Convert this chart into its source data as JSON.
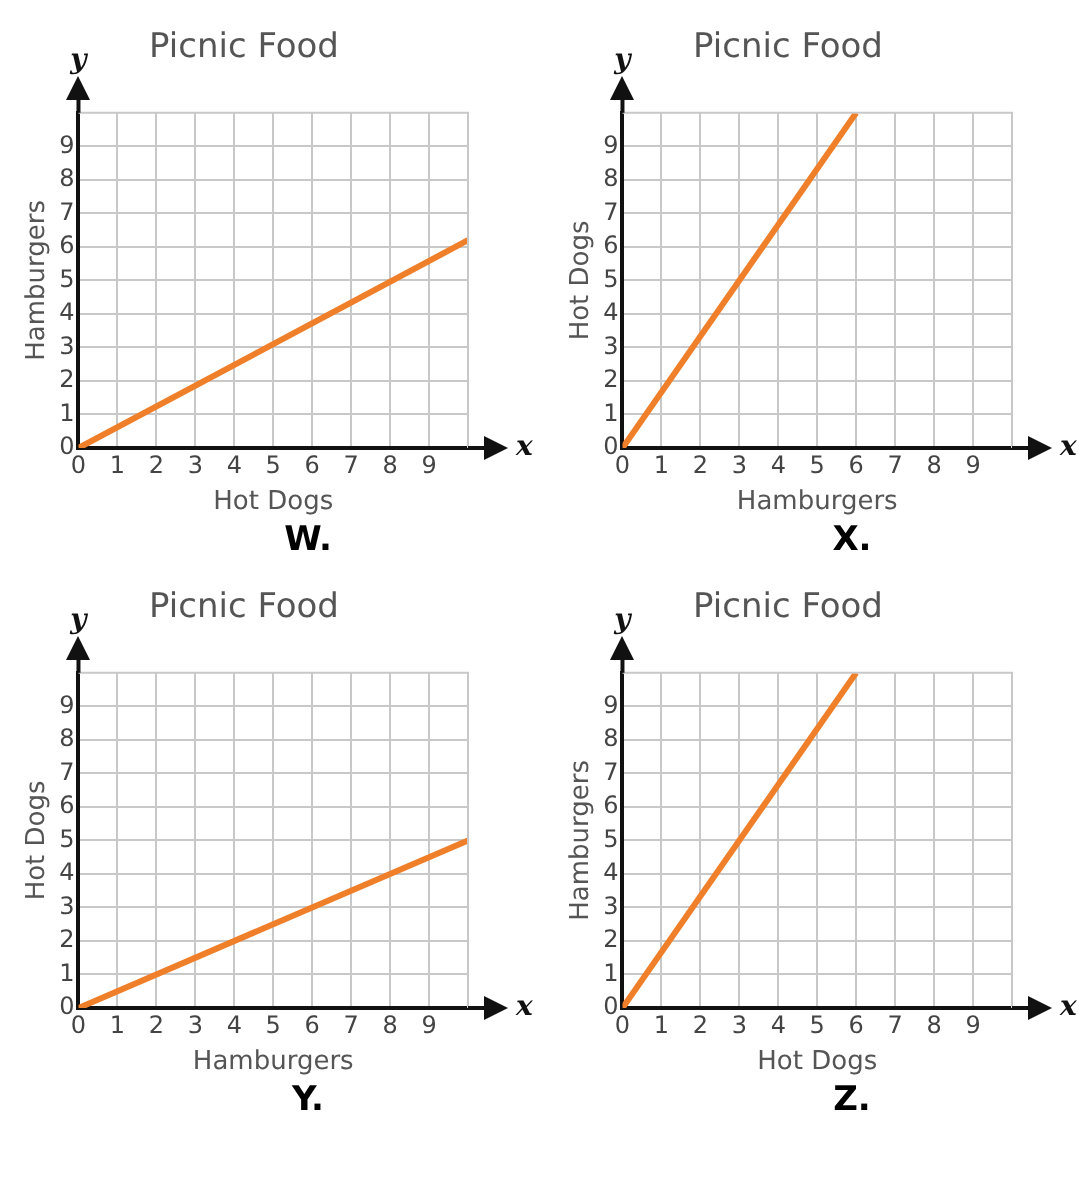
{
  "chart_data": [
    {
      "type": "line",
      "title": "Picnic Food",
      "xlabel": "Hot Dogs",
      "ylabel": "Hamburgers",
      "annotations": [
        "x",
        "y",
        "W."
      ],
      "x": [
        0,
        10
      ],
      "series": [
        {
          "color": "#f07f2a",
          "values": [
            0,
            6.2
          ]
        }
      ],
      "xlim": [
        0,
        10
      ],
      "ylim": [
        0,
        10
      ],
      "xticks": [
        0,
        1,
        2,
        3,
        4,
        5,
        6,
        7,
        8,
        9
      ],
      "yticks": [
        0,
        1,
        2,
        3,
        4,
        5,
        6,
        7,
        8,
        9
      ],
      "grid": true,
      "legend": false,
      "marker": "none"
    },
    {
      "type": "line",
      "title": "Picnic Food",
      "xlabel": "Hamburgers",
      "ylabel": "Hot Dogs",
      "annotations": [
        "x",
        "y",
        "X."
      ],
      "x": [
        0,
        6
      ],
      "series": [
        {
          "color": "#f07f2a",
          "values": [
            0,
            10
          ]
        }
      ],
      "xlim": [
        0,
        10
      ],
      "ylim": [
        0,
        10
      ],
      "xticks": [
        0,
        1,
        2,
        3,
        4,
        5,
        6,
        7,
        8,
        9
      ],
      "yticks": [
        0,
        1,
        2,
        3,
        4,
        5,
        6,
        7,
        8,
        9
      ],
      "grid": true,
      "legend": false,
      "marker": "none"
    },
    {
      "type": "line",
      "title": "Picnic Food",
      "xlabel": "Hamburgers",
      "ylabel": "Hot Dogs",
      "annotations": [
        "x",
        "y",
        "Y."
      ],
      "x": [
        0,
        10
      ],
      "series": [
        {
          "color": "#f07f2a",
          "values": [
            0,
            5
          ]
        }
      ],
      "xlim": [
        0,
        10
      ],
      "ylim": [
        0,
        10
      ],
      "xticks": [
        0,
        1,
        2,
        3,
        4,
        5,
        6,
        7,
        8,
        9
      ],
      "yticks": [
        0,
        1,
        2,
        3,
        4,
        5,
        6,
        7,
        8,
        9
      ],
      "grid": true,
      "legend": false,
      "marker": "none"
    },
    {
      "type": "line",
      "title": "Picnic Food",
      "xlabel": "Hot Dogs",
      "ylabel": "Hamburgers",
      "annotations": [
        "x",
        "y",
        "Z."
      ],
      "x": [
        0,
        6
      ],
      "series": [
        {
          "color": "#f07f2a",
          "values": [
            0,
            10
          ]
        }
      ],
      "xlim": [
        0,
        10
      ],
      "ylim": [
        0,
        10
      ],
      "xticks": [
        0,
        1,
        2,
        3,
        4,
        5,
        6,
        7,
        8,
        9
      ],
      "yticks": [
        0,
        1,
        2,
        3,
        4,
        5,
        6,
        7,
        8,
        9
      ],
      "grid": true,
      "legend": false,
      "marker": "none"
    }
  ]
}
